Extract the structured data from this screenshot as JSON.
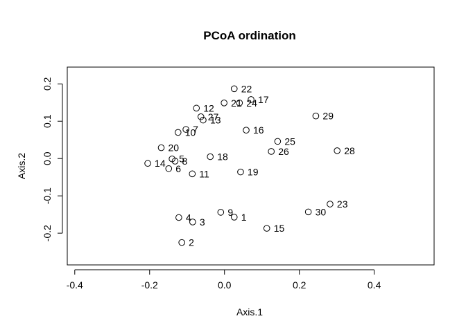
{
  "chart_data": {
    "type": "scatter",
    "title": "PCoA ordination",
    "xlabel": "Axis.1",
    "ylabel": "Axis.2",
    "xlim": [
      -0.42,
      0.56
    ],
    "ylim": [
      -0.285,
      0.245
    ],
    "xticks": [
      -0.4,
      -0.2,
      0.0,
      0.2,
      0.4
    ],
    "xtick_labels": [
      "-0.4",
      "-0.2",
      "0.0",
      "0.2",
      "0.4"
    ],
    "yticks": [
      -0.2,
      -0.1,
      0.0,
      0.1,
      0.2
    ],
    "ytick_labels": [
      "-0.2",
      "-0.1",
      "0.0",
      "0.1",
      "0.2"
    ],
    "grid": false,
    "legend": false,
    "points": [
      {
        "label": "1",
        "x": 0.026,
        "y": -0.157
      },
      {
        "label": "2",
        "x": -0.114,
        "y": -0.225
      },
      {
        "label": "3",
        "x": -0.085,
        "y": -0.17
      },
      {
        "label": "4",
        "x": -0.122,
        "y": -0.158
      },
      {
        "label": "5",
        "x": -0.14,
        "y": -0.001
      },
      {
        "label": "6",
        "x": -0.149,
        "y": -0.027
      },
      {
        "label": "7",
        "x": -0.103,
        "y": 0.078
      },
      {
        "label": "8",
        "x": -0.132,
        "y": -0.007
      },
      {
        "label": "9",
        "x": -0.01,
        "y": -0.144
      },
      {
        "label": "10",
        "x": -0.124,
        "y": 0.07
      },
      {
        "label": "11",
        "x": -0.086,
        "y": -0.041
      },
      {
        "label": "12",
        "x": -0.075,
        "y": 0.135
      },
      {
        "label": "13",
        "x": -0.057,
        "y": 0.103
      },
      {
        "label": "14",
        "x": -0.205,
        "y": -0.013
      },
      {
        "label": "15",
        "x": 0.113,
        "y": -0.187
      },
      {
        "label": "16",
        "x": 0.058,
        "y": 0.076
      },
      {
        "label": "17",
        "x": 0.071,
        "y": 0.158
      },
      {
        "label": "18",
        "x": -0.038,
        "y": 0.005
      },
      {
        "label": "19",
        "x": 0.043,
        "y": -0.036
      },
      {
        "label": "20",
        "x": -0.169,
        "y": 0.029
      },
      {
        "label": "21",
        "x": -0.001,
        "y": 0.149
      },
      {
        "label": "22",
        "x": 0.026,
        "y": 0.187
      },
      {
        "label": "23",
        "x": 0.282,
        "y": -0.122
      },
      {
        "label": "24",
        "x": 0.04,
        "y": 0.149
      },
      {
        "label": "25",
        "x": 0.142,
        "y": 0.046
      },
      {
        "label": "26",
        "x": 0.125,
        "y": 0.019
      },
      {
        "label": "27",
        "x": -0.063,
        "y": 0.112
      },
      {
        "label": "28",
        "x": 0.301,
        "y": 0.021
      },
      {
        "label": "29",
        "x": 0.244,
        "y": 0.114
      },
      {
        "label": "30",
        "x": 0.224,
        "y": -0.143
      }
    ]
  }
}
